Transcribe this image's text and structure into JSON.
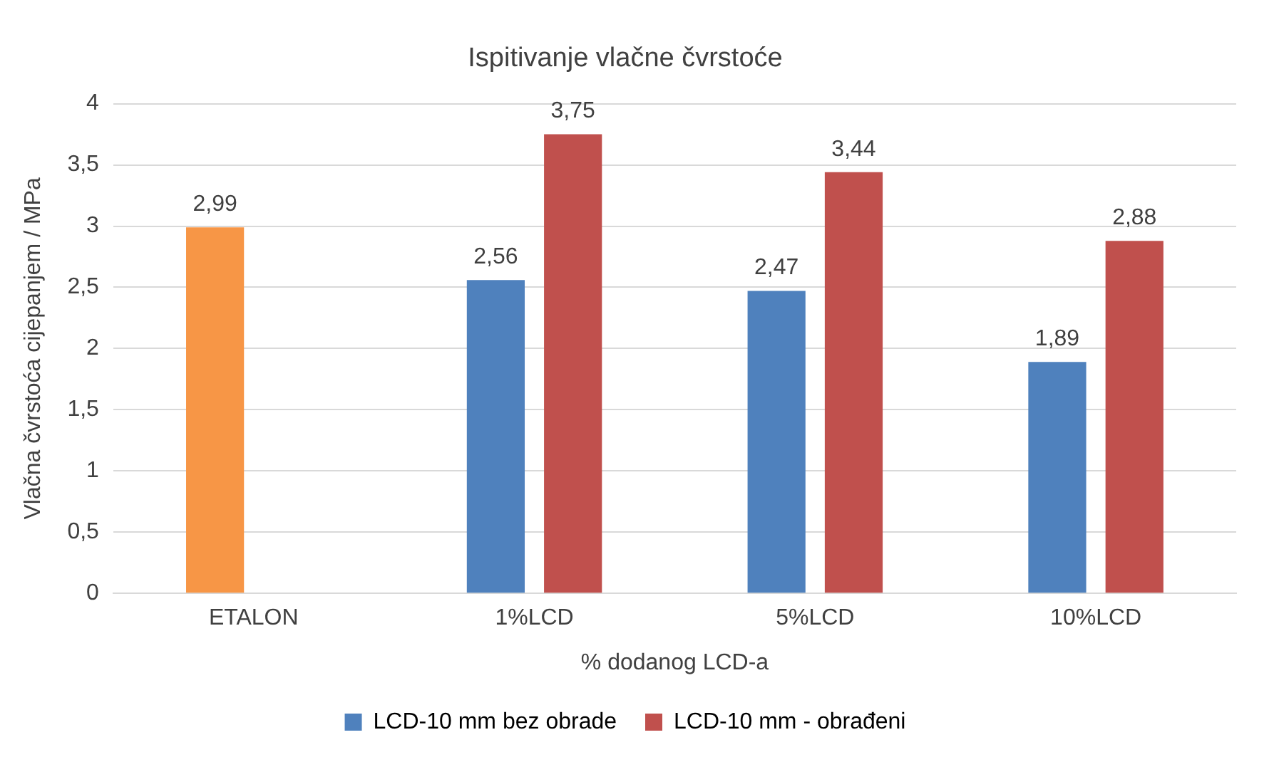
{
  "chart_data": {
    "type": "bar",
    "title": "Ispitivanje vlačne čvrstoće",
    "xlabel": "% dodanog LCD-a",
    "ylabel": "Vlačna čvrstoća cijepanjem / MPa",
    "categories": [
      "ETALON",
      "1%LCD",
      "5%LCD",
      "10%LCD"
    ],
    "series": [
      {
        "name": "LCD-10 mm bez obrade",
        "color": "#4f81bd",
        "colors": [
          "#f79646",
          "#4f81bd",
          "#4f81bd",
          "#4f81bd"
        ],
        "values": [
          2.99,
          2.56,
          2.47,
          1.89
        ],
        "value_labels": [
          "2,99",
          "2,56",
          "2,47",
          "1,89"
        ]
      },
      {
        "name": "LCD-10 mm - obrađeni",
        "color": "#c0504d",
        "values": [
          null,
          3.75,
          3.44,
          2.88
        ],
        "value_labels": [
          null,
          "3,75",
          "3,44",
          "2,88"
        ]
      }
    ],
    "ylim": [
      0,
      4
    ],
    "yticks": [
      0,
      {
        "value": 0.5,
        "label": "0,5"
      },
      1,
      {
        "value": 1.5,
        "label": "1,5"
      },
      2,
      {
        "value": 2.5,
        "label": "2,5"
      },
      3,
      {
        "value": 3.5,
        "label": "3,5"
      },
      4
    ],
    "grid": "y",
    "legend": "bottom"
  }
}
